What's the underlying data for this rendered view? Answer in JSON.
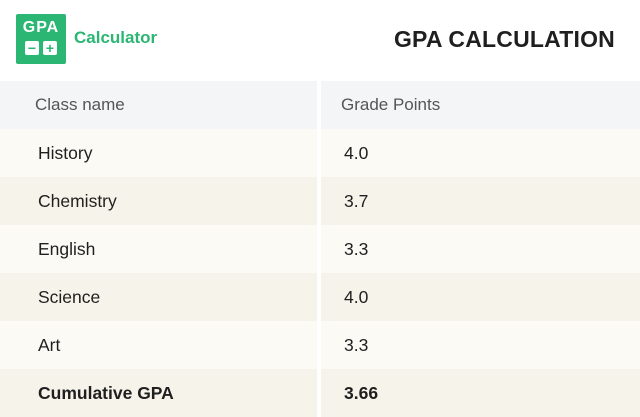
{
  "brand": {
    "logo_text": "GPA",
    "logo_icons": [
      "minus-icon",
      "plus-icon"
    ],
    "name": "Calculator",
    "accent_color": "#2bb673"
  },
  "title": "GPA CALCULATION",
  "table": {
    "headers": [
      "Class name",
      "Grade Points"
    ],
    "rows": [
      {
        "class": "History",
        "points": "4.0"
      },
      {
        "class": "Chemistry",
        "points": "3.7"
      },
      {
        "class": "English",
        "points": "3.3"
      },
      {
        "class": "Science",
        "points": "4.0"
      },
      {
        "class": "Art",
        "points": "3.3"
      }
    ],
    "total": {
      "label": "Cumulative GPA",
      "value": "3.66"
    }
  }
}
